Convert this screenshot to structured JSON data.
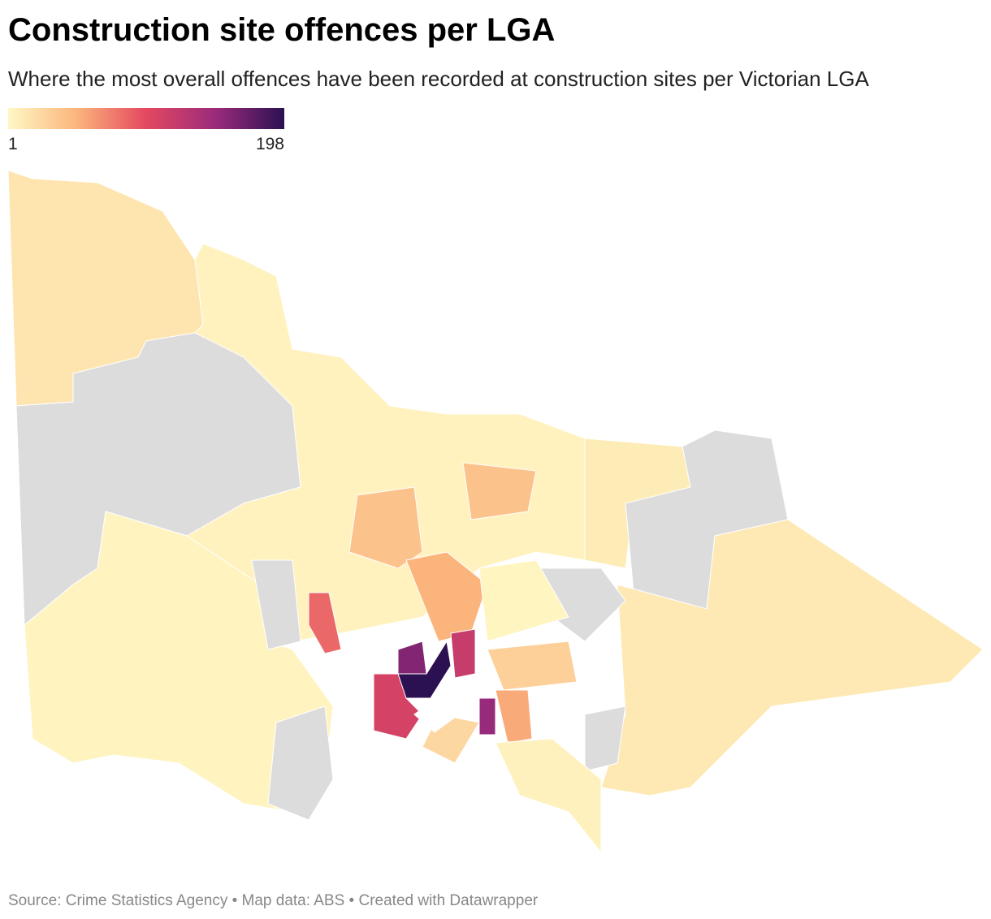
{
  "title": "Construction site offences per LGA",
  "subtitle": "Where the most overall offences have been recorded at construction sites per Victorian LGA",
  "map": {
    "legend": {
      "min": 1,
      "max": 198,
      "colors": [
        "#fff8c4",
        "#fbb47c",
        "#e4485f",
        "#9b2b7c",
        "#2c1152"
      ]
    },
    "no_data_color": "#dcdcdc",
    "regions": [
      15,
      null,
      5,
      10,
      null,
      12,
      4,
      null,
      null,
      40,
      40,
      50,
      198,
      110,
      150,
      120,
      null,
      3,
      30,
      55,
      null,
      160,
      85,
      25,
      6
    ]
  },
  "footer": "Source: Crime Statistics Agency • Map data: ABS • Created with Datawrapper"
}
